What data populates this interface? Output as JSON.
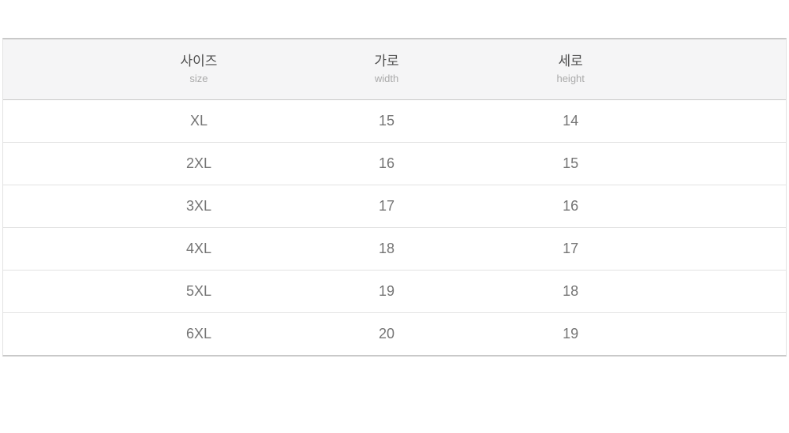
{
  "size_chart": {
    "columns": [
      {
        "label": "사이즈",
        "sublabel": "size"
      },
      {
        "label": "가로",
        "sublabel": "width"
      },
      {
        "label": "세로",
        "sublabel": "height"
      }
    ],
    "rows": [
      {
        "size": "XL",
        "width": "15",
        "height": "14"
      },
      {
        "size": "2XL",
        "width": "16",
        "height": "15"
      },
      {
        "size": "3XL",
        "width": "17",
        "height": "16"
      },
      {
        "size": "4XL",
        "width": "18",
        "height": "17"
      },
      {
        "size": "5XL",
        "width": "19",
        "height": "18"
      },
      {
        "size": "6XL",
        "width": "20",
        "height": "19"
      }
    ],
    "colors": {
      "header_background": "#f5f5f6",
      "outer_border": "#c9c9c9",
      "row_separator": "#e3e3e3",
      "header_text": "#4e4e4e",
      "subheader_text": "#aaaaaa",
      "cell_text": "#747474"
    }
  }
}
